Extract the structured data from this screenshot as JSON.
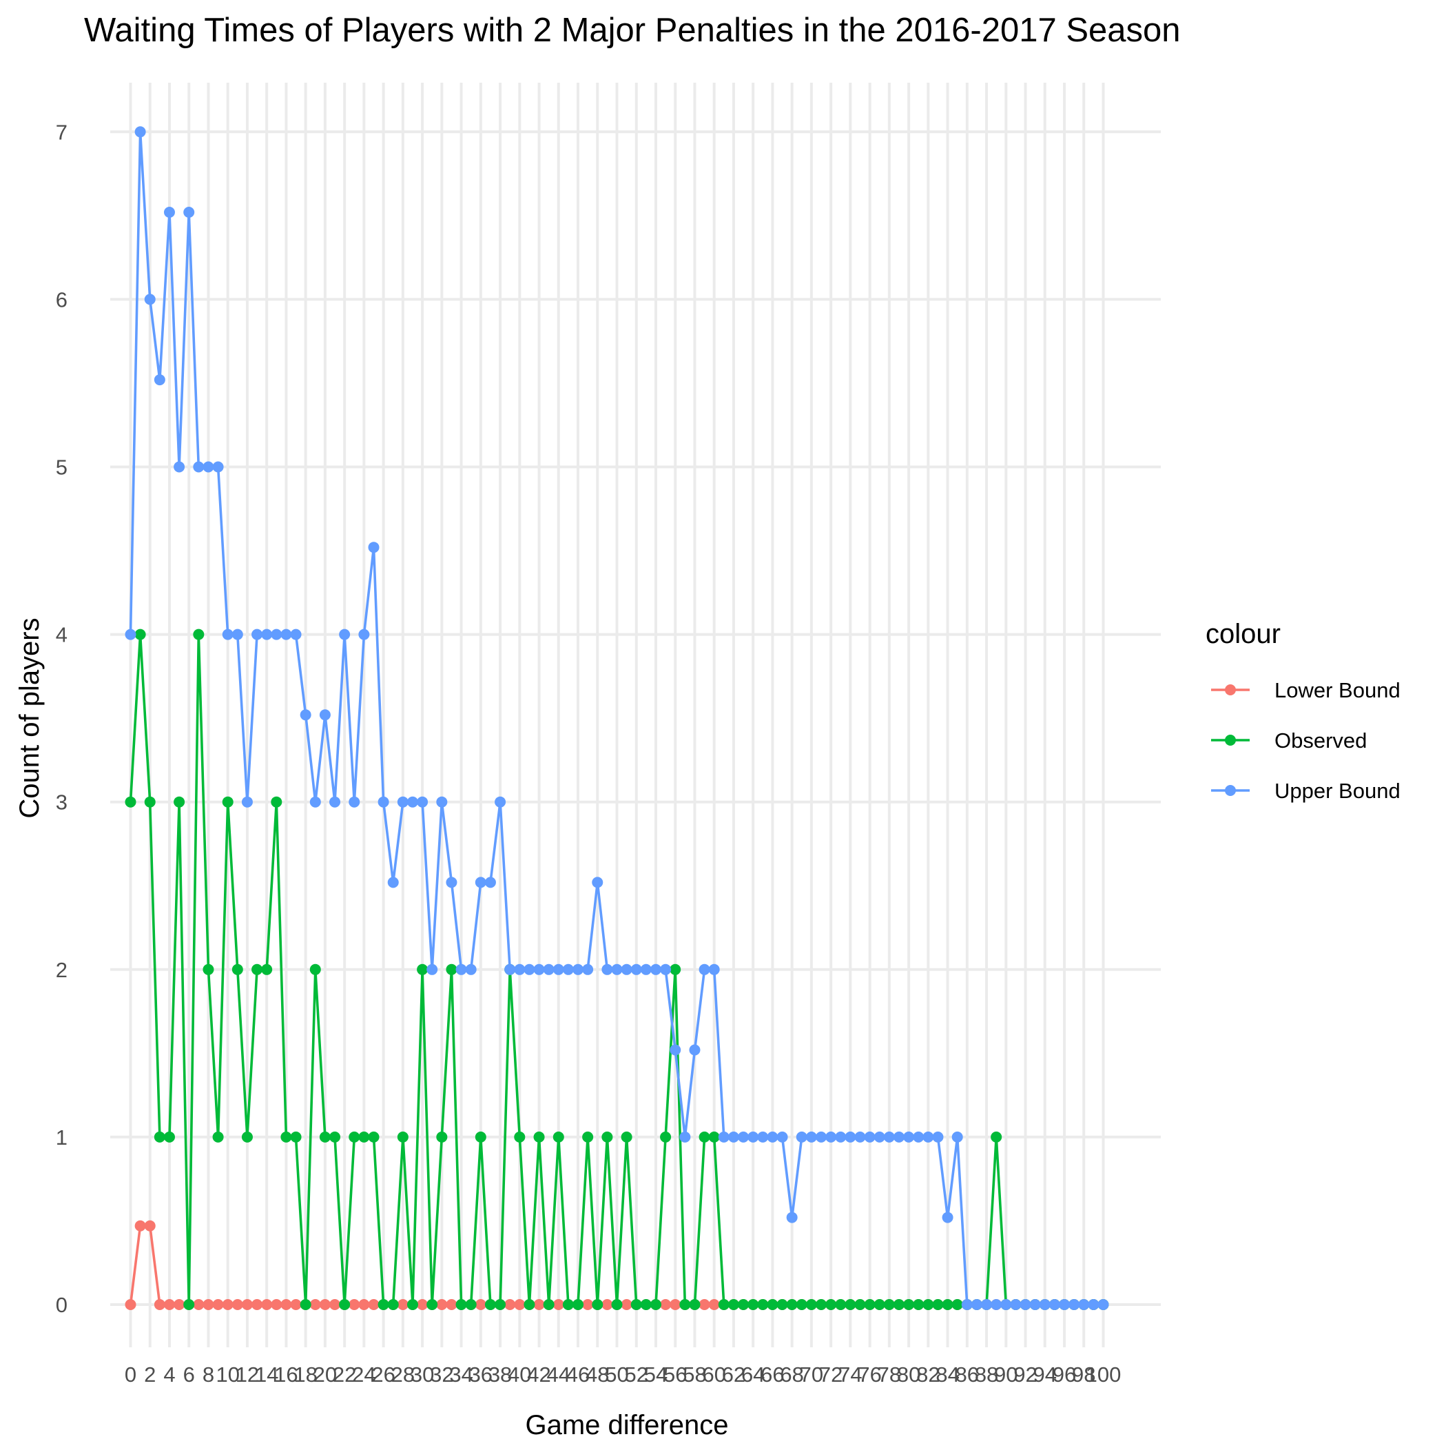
{
  "chart_data": {
    "type": "line",
    "title": "Waiting Times of Players with 2 Major Penalties in the 2016-2017 Season",
    "xlabel": "Game difference",
    "ylabel": "Count of players",
    "xlim": [
      0,
      100
    ],
    "ylim": [
      0,
      7
    ],
    "x_ticks": [
      0,
      2,
      4,
      6,
      8,
      10,
      12,
      14,
      16,
      18,
      20,
      22,
      24,
      26,
      28,
      30,
      32,
      34,
      36,
      38,
      40,
      42,
      44,
      46,
      48,
      50,
      52,
      54,
      56,
      58,
      60,
      62,
      64,
      66,
      68,
      70,
      72,
      74,
      76,
      78,
      80,
      82,
      84,
      86,
      88,
      90,
      92,
      94,
      96,
      98,
      100
    ],
    "y_ticks": [
      0,
      1,
      2,
      3,
      4,
      5,
      6,
      7
    ],
    "grid": true,
    "legend": {
      "title": "colour",
      "placement": "right",
      "entries": [
        "Lower Bound",
        "Observed",
        "Upper Bound"
      ]
    },
    "x": [
      0,
      1,
      2,
      3,
      4,
      5,
      6,
      7,
      8,
      9,
      10,
      11,
      12,
      13,
      14,
      15,
      16,
      17,
      18,
      19,
      20,
      21,
      22,
      23,
      24,
      25,
      26,
      27,
      28,
      29,
      30,
      31,
      32,
      33,
      34,
      35,
      36,
      37,
      38,
      39,
      40,
      41,
      42,
      43,
      44,
      45,
      46,
      47,
      48,
      49,
      50,
      51,
      52,
      53,
      54,
      55,
      56,
      57,
      58,
      59,
      60,
      61,
      62,
      63,
      64,
      65,
      66,
      67,
      68,
      69,
      70,
      71,
      72,
      73,
      74,
      75,
      76,
      77,
      78,
      79,
      80,
      81,
      82,
      83,
      84,
      85,
      86,
      87,
      88,
      89,
      90,
      91,
      92,
      93,
      94,
      95,
      96,
      97,
      98,
      99,
      100
    ],
    "series": [
      {
        "name": "Lower Bound",
        "color": "#F8766D",
        "values": [
          0,
          0.47,
          0.47,
          0,
          0,
          0,
          0,
          0,
          0,
          0,
          0,
          0,
          0,
          0,
          0,
          0,
          0,
          0,
          0,
          0,
          0,
          0,
          0,
          0,
          0,
          0,
          0,
          0,
          0,
          0,
          0,
          0,
          0,
          0,
          0,
          0,
          0,
          0,
          0,
          0,
          0,
          0,
          0,
          0,
          0,
          0,
          0,
          0,
          0,
          0,
          0,
          0,
          0,
          0,
          0,
          0,
          0,
          0,
          0,
          0,
          0,
          0,
          0,
          0,
          0,
          0,
          0,
          0,
          0,
          0,
          0,
          0,
          0,
          0,
          0,
          0,
          0,
          0,
          0,
          0,
          0,
          0,
          0,
          0,
          0,
          0,
          0,
          0,
          0,
          0,
          0,
          0,
          0,
          0,
          0,
          0,
          0,
          0,
          0,
          0,
          0
        ]
      },
      {
        "name": "Observed",
        "color": "#00BA38",
        "values": [
          3,
          4,
          3,
          1,
          1,
          3,
          0,
          4,
          2,
          1,
          3,
          2,
          1,
          2,
          2,
          3,
          1,
          1,
          0,
          2,
          1,
          1,
          0,
          1,
          1,
          1,
          0,
          0,
          1,
          0,
          2,
          0,
          1,
          2,
          0,
          0,
          1,
          0,
          0,
          2,
          1,
          0,
          1,
          0,
          1,
          0,
          0,
          1,
          0,
          1,
          0,
          1,
          0,
          0,
          0,
          1,
          2,
          0,
          0,
          1,
          1,
          0,
          0,
          0,
          0,
          0,
          0,
          0,
          0,
          0,
          0,
          0,
          0,
          0,
          0,
          0,
          0,
          0,
          0,
          0,
          0,
          0,
          0,
          0,
          0,
          0,
          0,
          0,
          0,
          1,
          0,
          0,
          0,
          0,
          0,
          0,
          0,
          0,
          0,
          0,
          0
        ]
      },
      {
        "name": "Upper Bound",
        "color": "#619CFF",
        "values": [
          4,
          7,
          6,
          5.52,
          6.52,
          5,
          6.52,
          5,
          5,
          5,
          4,
          4,
          3,
          4,
          4,
          4,
          4,
          4,
          3.52,
          3,
          3.52,
          3,
          4,
          3,
          4,
          4.52,
          3,
          2.52,
          3,
          3,
          3,
          2,
          3,
          2.52,
          2,
          2,
          2.52,
          2.52,
          3,
          2,
          2,
          2,
          2,
          2,
          2,
          2,
          2,
          2,
          2.52,
          2,
          2,
          2,
          2,
          2,
          2,
          2,
          1.52,
          1,
          1.52,
          2,
          2,
          1,
          1,
          1,
          1,
          1,
          1,
          1,
          0.52,
          1,
          1,
          1,
          1,
          1,
          1,
          1,
          1,
          1,
          1,
          1,
          1,
          1,
          1,
          1,
          0.52,
          1,
          0,
          0,
          0,
          0,
          0,
          0,
          0,
          0,
          0,
          0,
          0,
          0,
          0,
          0,
          0
        ]
      }
    ]
  }
}
